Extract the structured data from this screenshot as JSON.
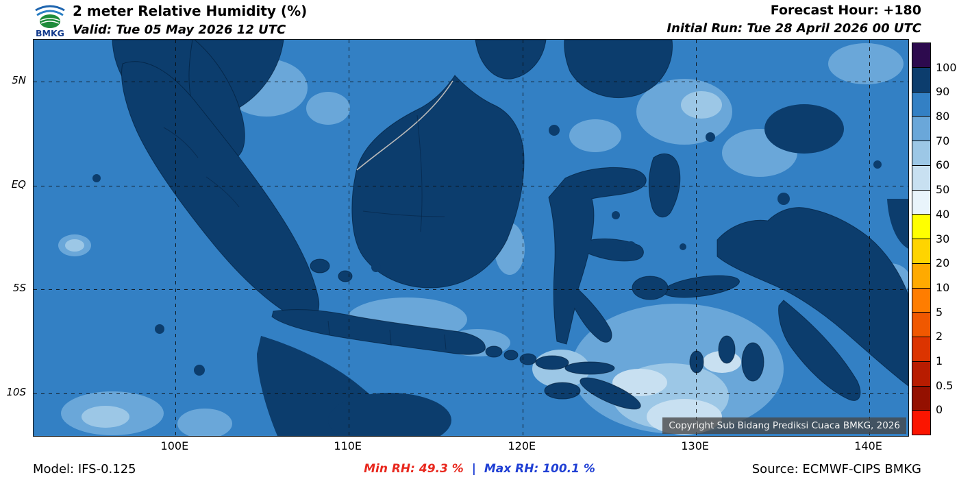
{
  "header": {
    "title": "2 meter Relative Humidity (%)",
    "valid": "Valid: Tue 05 May 2026 12 UTC",
    "forecast_hour": "Forecast Hour: +180",
    "initial_run": "Initial Run: Tue 28 April 2026 00 UTC",
    "logo_text": "BMKG"
  },
  "map": {
    "copyright": "Copyright Sub Bidang Prediksi Cuaca BMKG, 2026"
  },
  "axes": {
    "lat_ticks": [
      {
        "label": "5N",
        "pos": 0.105
      },
      {
        "label": "EQ",
        "pos": 0.368
      },
      {
        "label": "5S",
        "pos": 0.63
      },
      {
        "label": "10S",
        "pos": 0.893
      }
    ],
    "lon_ticks": [
      {
        "label": "100E",
        "pos": 0.162
      },
      {
        "label": "110E",
        "pos": 0.36
      },
      {
        "label": "120E",
        "pos": 0.559
      },
      {
        "label": "130E",
        "pos": 0.757
      },
      {
        "label": "140E",
        "pos": 0.955
      }
    ]
  },
  "colorbar": {
    "labels": [
      "100",
      "90",
      "80",
      "70",
      "60",
      "50",
      "40",
      "30",
      "20",
      "10",
      "5",
      "2",
      "1",
      "0.5",
      "0"
    ],
    "colors": [
      "#2d0a4e",
      "#0c3d6d",
      "#3380c4",
      "#6aa7d9",
      "#9cc7e6",
      "#c8e0f1",
      "#e9f4fb",
      "#ffff00",
      "#ffd400",
      "#ffaa00",
      "#ff7d00",
      "#f05800",
      "#dc3400",
      "#b81c00",
      "#941000",
      "#fb1500"
    ]
  },
  "palette": {
    "rh_90_100": "#0c3d6d",
    "rh_80_90": "#3380c4",
    "rh_70_80": "#6aa7d9",
    "rh_60_70": "#9cc7e6",
    "rh_50_60": "#c8e0f1",
    "rh_40_50": "#e9f4fb",
    "min_color": "#e8281e",
    "max_color": "#1f3fd4"
  },
  "footer": {
    "model": "Model: IFS-0.125",
    "min_rh_label": "Min RH:",
    "min_rh_value": "49.3 %",
    "separator": "|",
    "max_rh_label": "Max RH:",
    "max_rh_value": "100.1 %",
    "source": "Source: ECMWF-CIPS BMKG"
  },
  "chart_data": {
    "type": "heatmap",
    "title": "2 meter Relative Humidity (%)",
    "variable": "2 m relative humidity",
    "units": "%",
    "forecast_hour": 180,
    "valid_time": "Tue 05 May 2026 12 UTC",
    "initial_run": "Tue 28 April 2026 00 UTC",
    "model": "IFS-0.125",
    "source": "ECMWF-CIPS BMKG",
    "min_rh_percent": 49.3,
    "max_rh_percent": 100.1,
    "lat_tick_labels": [
      "5N",
      "EQ",
      "5S",
      "10S"
    ],
    "lon_tick_labels": [
      "100E",
      "110E",
      "120E",
      "130E",
      "140E"
    ],
    "scale_boundaries": [
      0,
      0.5,
      1,
      2,
      5,
      10,
      20,
      30,
      40,
      50,
      60,
      70,
      80,
      90,
      100
    ],
    "scale_colors_top_to_bottom": [
      "#2d0a4e",
      "#0c3d6d",
      "#3380c4",
      "#6aa7d9",
      "#9cc7e6",
      "#c8e0f1",
      "#e9f4fb",
      "#ffff00",
      "#ffd400",
      "#ffaa00",
      "#ff7d00",
      "#f05800",
      "#dc3400",
      "#b81c00",
      "#941000",
      "#fb1500"
    ],
    "legend_position": "right",
    "grid": "dashed"
  }
}
